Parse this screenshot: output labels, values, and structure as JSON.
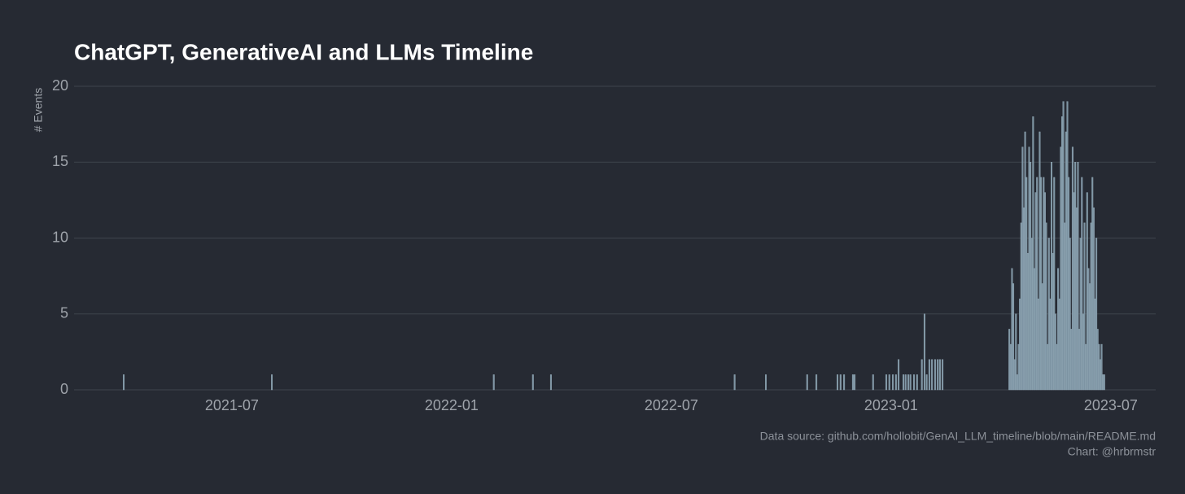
{
  "chart_data": {
    "type": "bar",
    "title": "ChatGPT, GenerativeAI and LLMs Timeline",
    "y_label": "# Events",
    "caption": [
      "Data source: github.com/hollobit/GenAI_LLM_timeline/blob/main/README.md",
      "Chart: @hrbrmstr"
    ],
    "color": "#7d94a3",
    "grid": true,
    "xlim": [
      2021.141,
      2023.602
    ],
    "xticks": [
      {
        "value": 2021.5,
        "label": "2021-07"
      },
      {
        "value": 2022.0,
        "label": "2022-01"
      },
      {
        "value": 2022.5,
        "label": "2022-07"
      },
      {
        "value": 2023.0,
        "label": "2023-01"
      },
      {
        "value": 2023.5,
        "label": "2023-07"
      }
    ],
    "ylim": [
      0,
      20
    ],
    "yticks": [
      0,
      5,
      10,
      15,
      20
    ],
    "x": [
      2021.254,
      2021.591,
      2022.096,
      2022.185,
      2022.226,
      2022.644,
      2022.715,
      2022.809,
      2022.83,
      2022.878,
      2022.885,
      2022.893,
      2022.913,
      2022.917,
      2022.959,
      2022.989,
      2022.996,
      2023.004,
      2023.011,
      2023.017,
      2023.028,
      2023.033,
      2023.039,
      2023.044,
      2023.052,
      2023.059,
      2023.07,
      2023.076,
      2023.081,
      2023.087,
      2023.093,
      2023.1,
      2023.106,
      2023.111,
      2023.117,
      2023.269,
      2023.272,
      2023.275,
      2023.278,
      2023.281,
      2023.284,
      2023.287,
      2023.29,
      2023.293,
      2023.296,
      2023.299,
      2023.302,
      2023.305,
      2023.308,
      2023.311,
      2023.314,
      2023.317,
      2023.32,
      2023.323,
      2023.326,
      2023.329,
      2023.332,
      2023.335,
      2023.338,
      2023.341,
      2023.344,
      2023.347,
      2023.35,
      2023.353,
      2023.356,
      2023.359,
      2023.362,
      2023.365,
      2023.368,
      2023.371,
      2023.374,
      2023.377,
      2023.38,
      2023.383,
      2023.386,
      2023.389,
      2023.392,
      2023.395,
      2023.398,
      2023.401,
      2023.404,
      2023.407,
      2023.41,
      2023.413,
      2023.416,
      2023.419,
      2023.422,
      2023.425,
      2023.428,
      2023.431,
      2023.434,
      2023.437,
      2023.44,
      2023.443,
      2023.446,
      2023.449,
      2023.452,
      2023.455,
      2023.458,
      2023.461,
      2023.464,
      2023.467,
      2023.47,
      2023.473,
      2023.476,
      2023.479,
      2023.482,
      2023.485
    ],
    "values": [
      1,
      1,
      1,
      1,
      1,
      1,
      1,
      1,
      1,
      1,
      1,
      1,
      1,
      1,
      1,
      1,
      1,
      1,
      1,
      2,
      1,
      1,
      1,
      1,
      1,
      1,
      2,
      5,
      1,
      2,
      2,
      2,
      2,
      2,
      2,
      4,
      3,
      8,
      7,
      2,
      5,
      1,
      3,
      6,
      11,
      16,
      12,
      17,
      14,
      9,
      16,
      15,
      10,
      18,
      8,
      13,
      14,
      6,
      17,
      14,
      7,
      14,
      13,
      11,
      3,
      10,
      6,
      15,
      9,
      14,
      5,
      3,
      8,
      6,
      16,
      18,
      19,
      11,
      17,
      19,
      14,
      10,
      4,
      16,
      13,
      15,
      12,
      15,
      4,
      10,
      14,
      5,
      11,
      3,
      13,
      8,
      7,
      11,
      14,
      12,
      6,
      10,
      4,
      3,
      2,
      3,
      1,
      1
    ]
  }
}
